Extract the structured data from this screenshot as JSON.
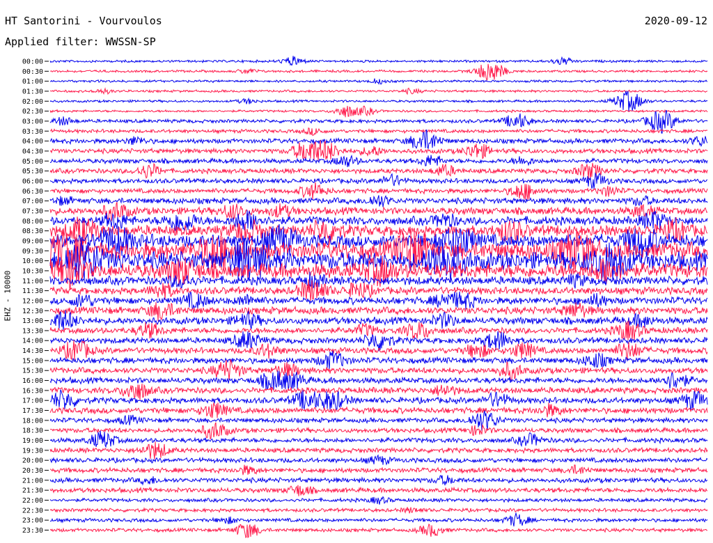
{
  "header": {
    "station": "HT Santorini - Vourvoulos",
    "filter": "Applied filter: WWSSN-SP",
    "date": "2020-09-12",
    "channel": "EHZ - 10000"
  },
  "chart_data": {
    "type": "line",
    "title": "HT Santorini - Vourvoulos",
    "subtitle": "Applied filter: WWSSN-SP",
    "ylabel": "EHZ - 10000",
    "grid": false,
    "rows": [
      "00:00",
      "00:30",
      "01:00",
      "01:30",
      "02:00",
      "02:30",
      "03:00",
      "03:30",
      "04:00",
      "04:30",
      "05:00",
      "05:30",
      "06:00",
      "06:30",
      "07:00",
      "07:30",
      "08:00",
      "08:30",
      "09:00",
      "09:30",
      "10:00",
      "10:30",
      "11:00",
      "11:30",
      "12:00",
      "12:30",
      "13:00",
      "13:30",
      "14:00",
      "14:30",
      "15:00",
      "15:30",
      "16:00",
      "16:30",
      "17:00",
      "17:30",
      "18:00",
      "18:30",
      "19:00",
      "19:30",
      "20:00",
      "20:30",
      "21:00",
      "21:30",
      "22:00",
      "22:30",
      "23:00",
      "23:30"
    ],
    "series_colors": [
      "#0000ee",
      "#ff1a4b"
    ],
    "noise_level": [
      2,
      2,
      2,
      2,
      2,
      2,
      3,
      3,
      4,
      4,
      4,
      4,
      4,
      4,
      5,
      6,
      7,
      9,
      11,
      14,
      15,
      12,
      7,
      6,
      6,
      6,
      6,
      5,
      5,
      5,
      5,
      5,
      5,
      5,
      5,
      5,
      4,
      4,
      4,
      4,
      4,
      4,
      4,
      4,
      3,
      3,
      3,
      3
    ],
    "events": [
      [
        [
          0.37,
          6
        ],
        [
          0.78,
          5
        ]
      ],
      [
        [
          0.67,
          14
        ],
        [
          0.3,
          3
        ]
      ],
      [
        [
          0.5,
          3
        ]
      ],
      [
        [
          0.08,
          3
        ],
        [
          0.55,
          3
        ]
      ],
      [
        [
          0.88,
          14
        ],
        [
          0.3,
          3
        ]
      ],
      [
        [
          0.45,
          8
        ],
        [
          0.48,
          5
        ]
      ],
      [
        [
          0.02,
          5
        ],
        [
          0.71,
          10
        ],
        [
          0.93,
          15
        ]
      ],
      [
        [
          0.4,
          4
        ]
      ],
      [
        [
          0.57,
          14
        ],
        [
          0.13,
          5
        ],
        [
          0.99,
          6
        ]
      ],
      [
        [
          0.39,
          13
        ],
        [
          0.42,
          12
        ],
        [
          0.65,
          10
        ],
        [
          0.49,
          6
        ]
      ],
      [
        [
          0.45,
          7
        ],
        [
          0.58,
          7
        ],
        [
          0.72,
          5
        ]
      ],
      [
        [
          0.15,
          9
        ],
        [
          0.6,
          7
        ],
        [
          0.82,
          10
        ]
      ],
      [
        [
          0.52,
          7
        ],
        [
          0.83,
          9
        ]
      ],
      [
        [
          0.4,
          10
        ],
        [
          0.72,
          11
        ],
        [
          0.85,
          6
        ]
      ],
      [
        [
          0.02,
          4
        ],
        [
          0.5,
          7
        ],
        [
          0.9,
          5
        ]
      ],
      [
        [
          0.1,
          11
        ],
        [
          0.28,
          9
        ],
        [
          0.35,
          7
        ],
        [
          0.9,
          7
        ]
      ],
      [
        [
          0.1,
          9
        ],
        [
          0.2,
          14
        ],
        [
          0.3,
          12
        ],
        [
          0.6,
          8
        ],
        [
          0.92,
          11
        ]
      ],
      [
        [
          0.05,
          16
        ],
        [
          0.3,
          14
        ],
        [
          0.42,
          14
        ],
        [
          0.7,
          12
        ],
        [
          0.95,
          12
        ]
      ],
      [
        [
          0.1,
          18
        ],
        [
          0.35,
          18
        ],
        [
          0.62,
          20
        ],
        [
          0.9,
          18
        ]
      ],
      [
        [
          0.02,
          22
        ],
        [
          0.25,
          22
        ],
        [
          0.55,
          22
        ],
        [
          0.8,
          22
        ]
      ],
      [
        [
          0.05,
          24
        ],
        [
          0.3,
          24
        ],
        [
          0.6,
          24
        ],
        [
          0.85,
          24
        ]
      ],
      [
        [
          0.03,
          20
        ],
        [
          0.2,
          15
        ],
        [
          0.5,
          15
        ],
        [
          0.85,
          14
        ]
      ],
      [
        [
          0.2,
          8
        ],
        [
          0.4,
          7
        ],
        [
          0.8,
          6
        ]
      ],
      [
        [
          0.17,
          9
        ],
        [
          0.4,
          14
        ],
        [
          0.47,
          10
        ]
      ],
      [
        [
          0.05,
          8
        ],
        [
          0.22,
          9
        ],
        [
          0.3,
          6
        ],
        [
          0.6,
          8
        ],
        [
          0.63,
          9
        ],
        [
          0.83,
          7
        ]
      ],
      [
        [
          0.17,
          11
        ],
        [
          0.8,
          9
        ]
      ],
      [
        [
          0.02,
          12
        ],
        [
          0.3,
          9
        ],
        [
          0.6,
          8
        ],
        [
          0.9,
          7
        ]
      ],
      [
        [
          0.15,
          9
        ],
        [
          0.48,
          7
        ],
        [
          0.56,
          11
        ],
        [
          0.88,
          12
        ]
      ],
      [
        [
          0.3,
          11
        ],
        [
          0.5,
          12
        ],
        [
          0.68,
          12
        ]
      ],
      [
        [
          0.04,
          13
        ],
        [
          0.33,
          8
        ],
        [
          0.65,
          9
        ],
        [
          0.72,
          10
        ],
        [
          0.88,
          11
        ]
      ],
      [
        [
          0.43,
          11
        ],
        [
          0.83,
          9
        ]
      ],
      [
        [
          0.27,
          13
        ],
        [
          0.36,
          9
        ],
        [
          0.7,
          10
        ]
      ],
      [
        [
          0.34,
          12
        ],
        [
          0.37,
          9
        ],
        [
          0.95,
          11
        ]
      ],
      [
        [
          0.13,
          12
        ],
        [
          0.6,
          7
        ]
      ],
      [
        [
          0.02,
          12
        ],
        [
          0.39,
          12
        ],
        [
          0.43,
          12
        ],
        [
          0.68,
          9
        ],
        [
          0.98,
          11
        ]
      ],
      [
        [
          0.25,
          10
        ],
        [
          0.76,
          7
        ]
      ],
      [
        [
          0.66,
          13
        ],
        [
          0.12,
          5
        ]
      ],
      [
        [
          0.25,
          11
        ],
        [
          0.65,
          6
        ]
      ],
      [
        [
          0.08,
          11
        ],
        [
          0.73,
          8
        ]
      ],
      [
        [
          0.16,
          11
        ]
      ],
      [
        [
          0.5,
          5
        ]
      ],
      [
        [
          0.3,
          5
        ],
        [
          0.8,
          5
        ]
      ],
      [
        [
          0.15,
          4
        ],
        [
          0.6,
          5
        ]
      ],
      [
        [
          0.38,
          7
        ]
      ],
      [
        [
          0.5,
          4
        ]
      ],
      [
        [
          0.55,
          3
        ]
      ],
      [
        [
          0.71,
          8
        ],
        [
          0.27,
          4
        ]
      ],
      [
        [
          0.3,
          10
        ],
        [
          0.58,
          8
        ]
      ]
    ]
  }
}
